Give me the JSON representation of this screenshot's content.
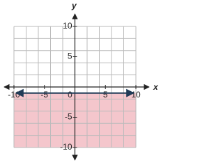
{
  "chart_data": {
    "type": "line",
    "x_label": "x",
    "y_label": "y",
    "x": [
      -10,
      10
    ],
    "series": [
      {
        "color": "#1f3b57",
        "values": [
          -1,
          -1
        ]
      }
    ],
    "shade": "below",
    "shade_color": "#f4c6cc",
    "xlim": [
      -10,
      10
    ],
    "ylim": [
      -10,
      10
    ],
    "xticks": [
      -10,
      -5,
      0,
      5,
      10
    ],
    "yticks": [
      -10,
      -5,
      5,
      10
    ],
    "xgrid": [
      -10,
      -8,
      -6,
      -4,
      -2,
      0,
      2,
      4,
      6,
      8,
      10
    ],
    "ygrid": [
      -10,
      -8,
      -6,
      -4,
      -2,
      0,
      2,
      4,
      6,
      8,
      10
    ],
    "grid": true
  }
}
